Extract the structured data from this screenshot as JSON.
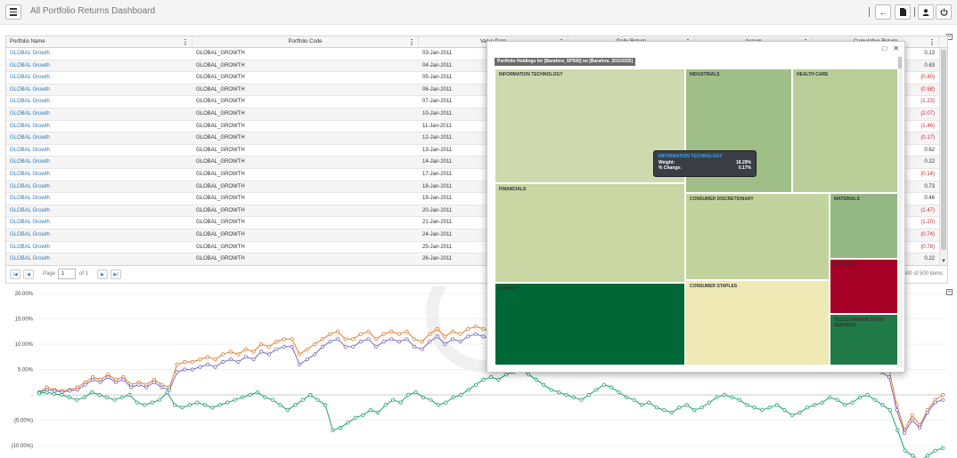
{
  "header": {
    "title": "All Portfolio Returns Dashboard",
    "icons": [
      "menu-icon",
      "back-icon",
      "document-icon",
      "user-icon",
      "power-icon"
    ]
  },
  "grid": {
    "columns": [
      "Portfolio Name",
      "Portfolio Code",
      "Value Date",
      "Daily Return",
      "Accum",
      "Cumulative Return"
    ],
    "rows": [
      {
        "name": "GLOBAL Growth",
        "code": "GLOBAL_GROWTH",
        "date": "03-Jan-2011",
        "ret": "0.13"
      },
      {
        "name": "GLOBAL Growth",
        "code": "GLOBAL_GROWTH",
        "date": "04-Jan-2011",
        "ret": "0.63"
      },
      {
        "name": "GLOBAL Growth",
        "code": "GLOBAL_GROWTH",
        "date": "05-Jan-2011",
        "ret": "(0.80)"
      },
      {
        "name": "GLOBAL Growth",
        "code": "GLOBAL_GROWTH",
        "date": "06-Jan-2011",
        "ret": "(0.58)"
      },
      {
        "name": "GLOBAL Growth",
        "code": "GLOBAL_GROWTH",
        "date": "07-Jan-2011",
        "ret": "(1.23)"
      },
      {
        "name": "GLOBAL Growth",
        "code": "GLOBAL_GROWTH",
        "date": "10-Jan-2011",
        "ret": "(2.07)"
      },
      {
        "name": "GLOBAL Growth",
        "code": "GLOBAL_GROWTH",
        "date": "11-Jan-2011",
        "ret": "(1.46)"
      },
      {
        "name": "GLOBAL Growth",
        "code": "GLOBAL_GROWTH",
        "date": "12-Jan-2011",
        "ret": "(0.17)"
      },
      {
        "name": "GLOBAL Growth",
        "code": "GLOBAL_GROWTH",
        "date": "13-Jan-2011",
        "ret": "0.62"
      },
      {
        "name": "GLOBAL Growth",
        "code": "GLOBAL_GROWTH",
        "date": "14-Jan-2011",
        "ret": "0.22"
      },
      {
        "name": "GLOBAL Growth",
        "code": "GLOBAL_GROWTH",
        "date": "17-Jan-2011",
        "ret": "(0.14)"
      },
      {
        "name": "GLOBAL Growth",
        "code": "GLOBAL_GROWTH",
        "date": "18-Jan-2011",
        "ret": "0.73"
      },
      {
        "name": "GLOBAL Growth",
        "code": "GLOBAL_GROWTH",
        "date": "19-Jan-2011",
        "ret": "0.46"
      },
      {
        "name": "GLOBAL Growth",
        "code": "GLOBAL_GROWTH",
        "date": "20-Jan-2011",
        "ret": "(1.47)"
      },
      {
        "name": "GLOBAL Growth",
        "code": "GLOBAL_GROWTH",
        "date": "21-Jan-2011",
        "ret": "(1.20)"
      },
      {
        "name": "GLOBAL Growth",
        "code": "GLOBAL_GROWTH",
        "date": "24-Jan-2011",
        "ret": "(0.74)"
      },
      {
        "name": "GLOBAL Growth",
        "code": "GLOBAL_GROWTH",
        "date": "25-Jan-2011",
        "ret": "(0.78)"
      },
      {
        "name": "GLOBAL Growth",
        "code": "GLOBAL_GROWTH",
        "date": "26-Jan-2011",
        "ret": "0.22"
      }
    ]
  },
  "pager": {
    "page_label": "Page",
    "page_value": "1",
    "of_label": "of 1",
    "items_text": "1 - 500 of 500 items"
  },
  "popup": {
    "title": "Portfolio Holdings for [Barafora_SP500] on [Barafora_20110325]",
    "tooltip": {
      "title": "INFORMATION TECHNOLOGY",
      "weight_label": "Weight:",
      "weight_value": "18.29%",
      "change_label": "% Change:",
      "change_value": "0.17%"
    },
    "sectors": [
      {
        "name": "INFORMATION TECHNOLOGY",
        "color": "#cfd9ae"
      },
      {
        "name": "INDUSTRIALS",
        "color": "#a0bf88"
      },
      {
        "name": "HEALTH CARE",
        "color": "#b9cd98"
      },
      {
        "name": "FINANCIALS",
        "color": "#c9d6a3"
      },
      {
        "name": "CONSUMER DISCRETIONARY",
        "color": "#c3d39e"
      },
      {
        "name": "MATERIALS",
        "color": "#93b883"
      },
      {
        "name": "ENERGY",
        "color": "#006837"
      },
      {
        "name": "CONSUMER STAPLES",
        "color": "#efe9b6"
      },
      {
        "name": "UTILITIES",
        "color": "#a50026"
      },
      {
        "name": "TELECOMMUNICATION SERVICES",
        "color": "#1f7a47"
      }
    ]
  },
  "chart_data": {
    "type": "line",
    "yticks": [
      "20.00%",
      "15.00%",
      "10.00%",
      "5.00%",
      "-",
      "(5.00%)",
      "(10.00%)"
    ],
    "ylim": [
      -12.5,
      20
    ],
    "series": [
      {
        "color": "#e07b2a",
        "values": [
          0.5,
          1.5,
          1,
          0.8,
          1,
          1.5,
          2.5,
          3.5,
          3,
          4,
          3,
          3.5,
          2,
          2.5,
          2,
          3,
          2,
          1.5,
          6,
          6.5,
          6.5,
          7,
          7.5,
          7,
          8,
          8.5,
          8,
          9,
          8.5,
          10,
          9.5,
          10.5,
          11,
          11,
          8,
          9,
          10,
          11,
          12,
          12.5,
          11,
          11,
          12,
          12.5,
          11,
          12,
          12.5,
          12,
          12.5,
          11,
          10.5,
          12,
          13,
          11.5,
          12.5,
          12,
          13,
          13.5,
          13,
          12.5,
          13,
          13.5,
          14,
          12.5,
          13,
          13.5,
          13,
          12,
          14,
          14.5,
          15,
          14.5,
          14,
          13,
          12,
          13.5,
          14,
          14.5,
          15,
          15.5,
          14,
          13,
          14,
          15,
          15.5,
          16,
          15,
          14,
          13,
          15,
          16,
          15.5,
          15,
          16,
          15.5,
          15,
          14,
          13,
          12,
          13,
          12,
          11,
          10,
          11,
          10,
          9,
          8,
          9,
          8,
          7,
          6,
          5,
          -2,
          -7,
          -4,
          -6,
          -3,
          -1,
          0
        ]
      },
      {
        "color": "#7b68b5",
        "values": [
          0.5,
          1,
          0.8,
          0.5,
          0.8,
          1,
          2,
          3,
          2.5,
          3.5,
          2.5,
          3,
          1.5,
          2,
          1.5,
          2.5,
          1.5,
          1,
          4.5,
          5,
          5,
          5.5,
          6,
          5.5,
          6.5,
          7,
          6.5,
          7.5,
          7,
          8.5,
          8,
          9,
          9.5,
          9.5,
          6,
          7,
          8,
          9.5,
          10.5,
          11,
          9.5,
          9.5,
          10.5,
          11,
          9.5,
          10.5,
          11,
          10.5,
          11,
          9.5,
          9,
          10.5,
          11.5,
          10,
          11,
          10.5,
          11.5,
          12,
          11.5,
          11,
          11.5,
          12,
          12.5,
          11,
          11.5,
          12,
          11.5,
          10.5,
          12.5,
          13,
          13.5,
          13,
          12.5,
          11.5,
          10.5,
          12,
          12.5,
          13,
          13.5,
          14,
          12.5,
          11.5,
          12.5,
          13.5,
          14,
          14.5,
          13.5,
          12.5,
          11.5,
          13.5,
          14.5,
          14,
          13.5,
          14.5,
          14,
          13.5,
          12.5,
          11.5,
          10.5,
          11.5,
          10.5,
          9.5,
          8.5,
          9.5,
          8.5,
          7.5,
          6.5,
          7.5,
          6.5,
          5.5,
          4.5,
          3.5,
          -3,
          -7.5,
          -5,
          -6.5,
          -3.5,
          -1.5,
          -1
        ]
      },
      {
        "color": "#1b9e77",
        "values": [
          0.3,
          0.5,
          0.2,
          0,
          -0.5,
          -1,
          -0.5,
          0.5,
          0,
          -0.5,
          -1,
          -0.5,
          0,
          -1.5,
          -2,
          -1.5,
          -1,
          0.5,
          -2,
          -2.5,
          -2,
          -1.5,
          -2,
          -2.5,
          -2,
          -1.5,
          -1,
          -0.5,
          0,
          0.5,
          -0.5,
          -1,
          -2,
          -3,
          -2,
          -1,
          0,
          -1,
          -2,
          -7,
          -6.5,
          -5.5,
          -4.5,
          -4,
          -3,
          -3.5,
          -2,
          -1,
          -1.5,
          0,
          0.5,
          -0.5,
          -1,
          -2,
          -1.5,
          -0.5,
          0,
          1,
          2,
          3,
          3.5,
          3,
          4,
          4.5,
          5,
          4,
          3,
          2,
          1,
          0.5,
          0,
          -0.5,
          -1,
          0,
          1,
          2,
          1.5,
          0.5,
          -0.5,
          -1,
          -2,
          -1.5,
          -2.5,
          -3,
          -3.5,
          -2.5,
          -2,
          -3,
          -2.5,
          -1.5,
          -0.5,
          0,
          -0.5,
          -1,
          -2,
          -2.5,
          -3,
          -2.5,
          -2,
          -3,
          -4,
          -3.5,
          -2.5,
          -2,
          -1.5,
          -0.5,
          -1,
          -2,
          -1.5,
          -0.5,
          0,
          -1,
          -2,
          -3,
          -7,
          -11,
          -12,
          -13,
          -12,
          -11,
          -10.5
        ]
      }
    ]
  }
}
